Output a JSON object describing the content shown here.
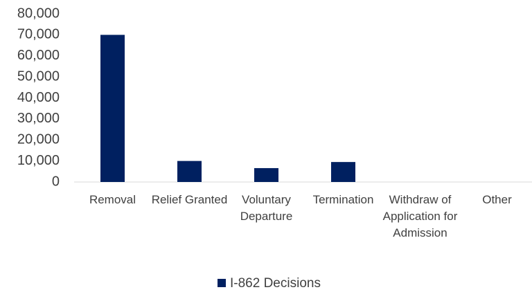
{
  "chart_data": {
    "type": "bar",
    "categories": [
      "Removal",
      "Relief Granted",
      "Voluntary Departure",
      "Termination",
      "Withdraw of Application for Admission",
      "Other"
    ],
    "series": [
      {
        "name": "I-862 Decisions",
        "color": "#002060",
        "values": [
          70000,
          10000,
          6600,
          9500,
          0,
          0
        ]
      }
    ],
    "ylim": [
      0,
      80000
    ],
    "yticks": [
      0,
      {
        "value": 10000,
        "label": "10,000"
      },
      {
        "value": 20000,
        "label": "20,000"
      },
      {
        "value": 30000,
        "label": "30,000"
      },
      {
        "value": 40000,
        "label": "40,000"
      },
      {
        "value": 50000,
        "label": "50,000"
      },
      {
        "value": 60000,
        "label": "60,000"
      },
      {
        "value": 70000,
        "label": "70,000"
      },
      {
        "value": 80000,
        "label": "80,000"
      }
    ],
    "legend": "bottom"
  }
}
